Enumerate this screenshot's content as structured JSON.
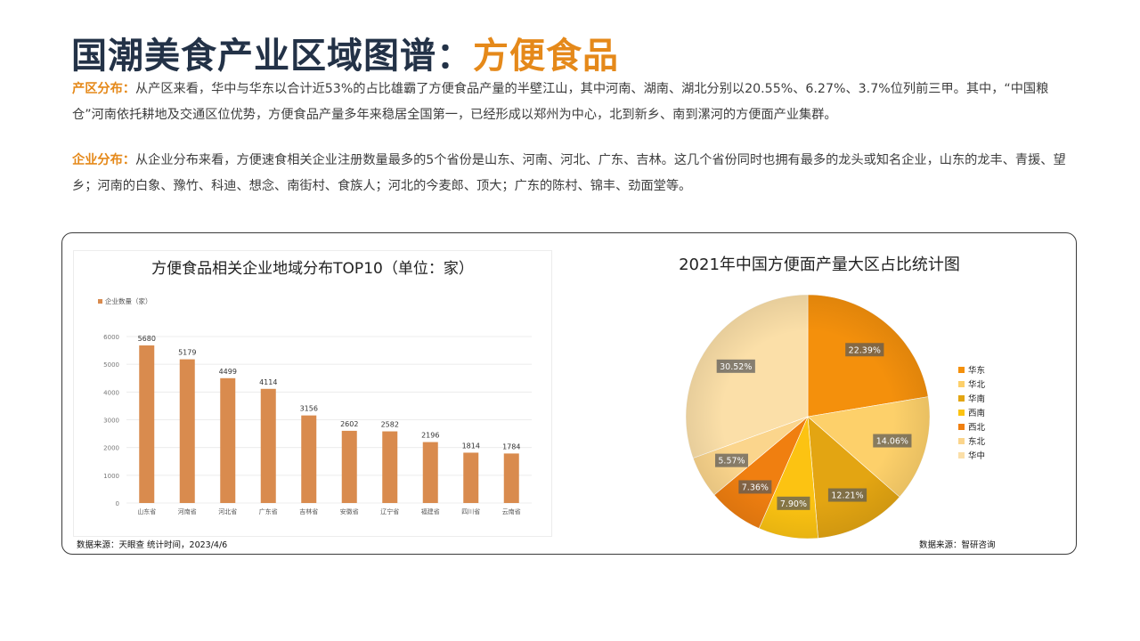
{
  "header": {
    "title_main": "国潮美食产业区域图谱：",
    "title_accent": "方便食品"
  },
  "paragraphs": [
    {
      "lead": "产区分布：",
      "text": "从产区来看，华中与华东以合计近53%的占比雄霸了方便食品产量的半壁江山，其中河南、湖南、湖北分别以20.55%、6.27%、3.7%位列前三甲。其中，“中国粮仓”河南依托耕地及交通区位优势，方便食品产量多年来稳居全国第一，已经形成以郑州为中心，北到新乡、南到漯河的方便面产业集群。"
    },
    {
      "lead": "企业分布：",
      "text": "从企业分布来看，方便速食相关企业注册数量最多的5个省份是山东、河南、河北、广东、吉林。这几个省份同时也拥有最多的龙头或知名企业，山东的龙丰、青援、望乡；河南的白象、豫竹、科迪、想念、南街村、食族人；河北的今麦郎、顶大；广东的陈村、锦丰、劲面堂等。"
    }
  ],
  "colors": {
    "accent": "#e5891a",
    "title": "#233247",
    "bar": "#d98b4e"
  },
  "chart_data": [
    {
      "type": "bar",
      "title": "方便食品相关企业地域分布TOP10（单位：家）",
      "legend": "企业数量（家）",
      "categories": [
        "山东省",
        "河南省",
        "河北省",
        "广东省",
        "吉林省",
        "安徽省",
        "辽宁省",
        "福建省",
        "四川省",
        "云南省"
      ],
      "series": [
        {
          "name": "企业数量（家）",
          "values": [
            5680,
            5179,
            4499,
            4114,
            3156,
            2602,
            2582,
            2196,
            1814,
            1784
          ]
        }
      ],
      "yticks": [
        0,
        1000,
        2000,
        3000,
        4000,
        5000,
        6000
      ],
      "ylim": [
        0,
        6000
      ],
      "grid": true,
      "source": "数据来源：天眼查 统计时间，2023/4/6"
    },
    {
      "type": "pie",
      "title": "2021年中国方便面产量大区占比统计图",
      "labels": [
        "华东",
        "华北",
        "华南",
        "西南",
        "西北",
        "东北",
        "华中"
      ],
      "slices": [
        {
          "label": "华东",
          "value": 22.39,
          "text": "22.39%",
          "color": "#f4900c"
        },
        {
          "label": "华北",
          "value": 14.06,
          "text": "14.06%",
          "color": "#fdd06a"
        },
        {
          "label": "华南",
          "value": 12.21,
          "text": "12.21%",
          "color": "#e3a512"
        },
        {
          "label": "西南",
          "value": 7.9,
          "text": "7.90%",
          "color": "#fcc312"
        },
        {
          "label": "西北",
          "value": 7.36,
          "text": "7.36%",
          "color": "#f07f10"
        },
        {
          "label": "东北",
          "value": 5.57,
          "text": "5.57%",
          "color": "#fbd58c"
        },
        {
          "label": "华中",
          "value": 30.52,
          "text": "30.52%",
          "color": "#fbdfa8"
        }
      ],
      "legend_position": "right",
      "source": "数据来源：智研咨询"
    }
  ]
}
